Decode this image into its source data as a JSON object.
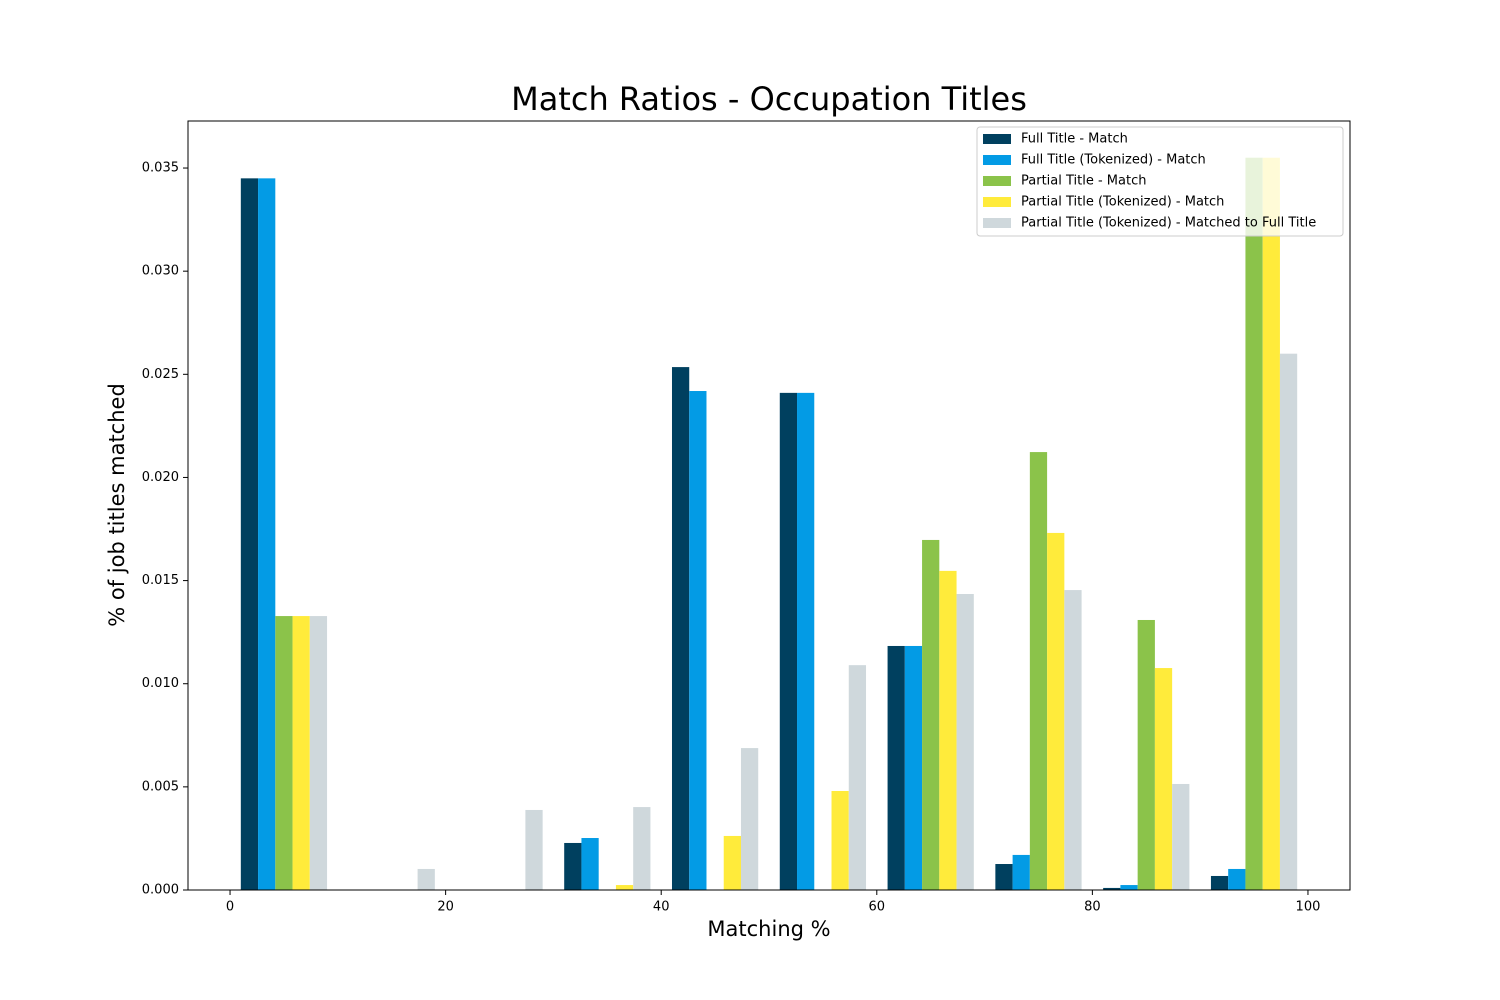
{
  "chart_data": {
    "type": "histogram",
    "title": "Match Ratios - Occupation Titles",
    "xlabel": "Matching %",
    "ylabel": "% of job titles matched",
    "bins": [
      0,
      10,
      20,
      30,
      40,
      50,
      60,
      70,
      80,
      90,
      100
    ],
    "series": [
      {
        "name": "Full Title - Match",
        "color": "#00405f",
        "values": [
          0.0345,
          0,
          0,
          0.00228,
          0.02535,
          0.0241,
          0.01183,
          0.00126,
          0.0001,
          0.00068
        ]
      },
      {
        "name": "Full Title (Tokenized) - Match",
        "color": "#039be5",
        "values": [
          0.0345,
          0,
          0,
          0.00252,
          0.02419,
          0.0241,
          0.01183,
          0.0017,
          0.00024,
          0.00102
        ]
      },
      {
        "name": "Partial Title - Match",
        "color": "#8bc34a",
        "values": [
          0.01328,
          0,
          0,
          0,
          0,
          0,
          0.01697,
          0.02123,
          0.01309,
          0.0355
        ]
      },
      {
        "name": "Partial Title (Tokenized) - Match",
        "color": "#ffeb3b",
        "values": [
          0.01328,
          0,
          0,
          0.00024,
          0.00262,
          0.0048,
          0.01547,
          0.01731,
          0.01076,
          0.0355
        ]
      },
      {
        "name": "Partial Title (Tokenized) - Matched to Full Title",
        "color": "#cfd8dc",
        "values": [
          0.01328,
          0.00102,
          0.00388,
          0.00402,
          0.00688,
          0.0109,
          0.01435,
          0.01454,
          0.00514,
          0.026
        ]
      }
    ],
    "xlim": [
      -3.9,
      103.9
    ],
    "ylim": [
      0,
      0.03728
    ],
    "xticks": [
      0,
      20,
      40,
      60,
      80,
      100
    ],
    "yticks": [
      {
        "value": 0,
        "label": "0.000"
      },
      {
        "value": 0.005,
        "label": "0.005"
      },
      {
        "value": 0.01,
        "label": "0.010"
      },
      {
        "value": 0.015,
        "label": "0.015"
      },
      {
        "value": 0.02,
        "label": "0.020"
      },
      {
        "value": 0.025,
        "label": "0.025"
      },
      {
        "value": 0.03,
        "label": "0.030"
      },
      {
        "value": 0.035,
        "label": "0.035"
      }
    ],
    "legend": "upper right"
  }
}
